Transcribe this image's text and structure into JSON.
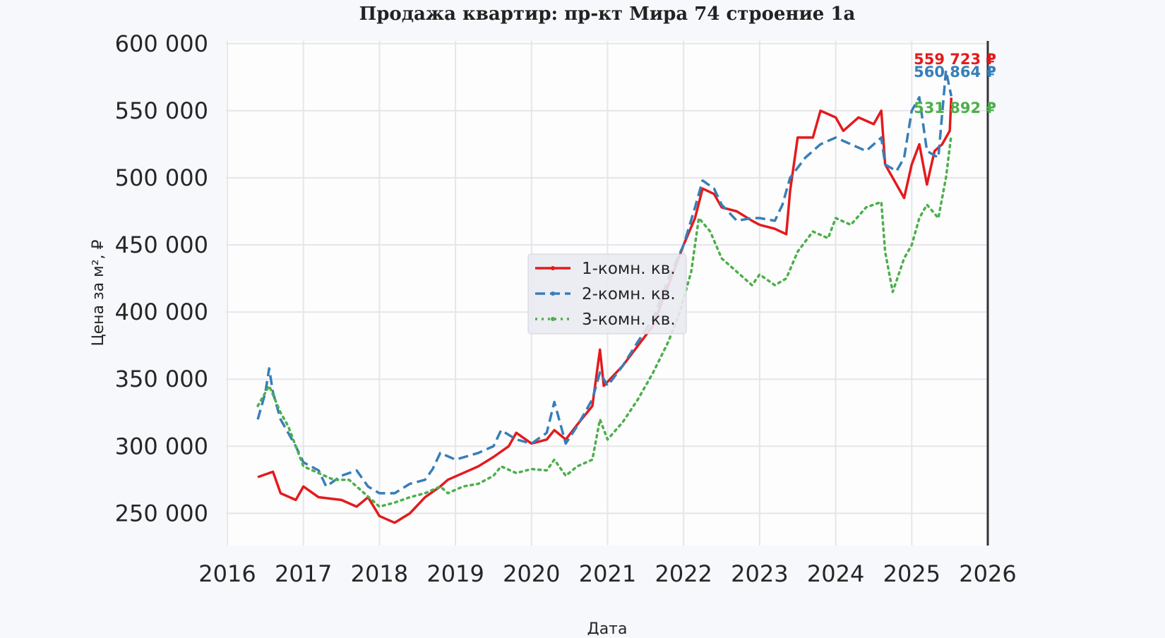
{
  "chart_data": {
    "type": "line",
    "title": "Продажа квартир: пр-кт Мира 74 строение 1а",
    "xlabel": "Дата",
    "ylabel": "Цена за м², ₽",
    "xlim": [
      2016,
      2026
    ],
    "ylim": [
      226000,
      602000
    ],
    "x_ticks": [
      "2016",
      "2017",
      "2018",
      "2019",
      "2020",
      "2021",
      "2022",
      "2023",
      "2024",
      "2025",
      "2026"
    ],
    "y_ticks": [
      250000,
      300000,
      350000,
      400000,
      450000,
      500000,
      550000,
      600000
    ],
    "y_tick_labels": [
      "250 000",
      "300 000",
      "350 000",
      "400 000",
      "450 000",
      "500 000",
      "550 000",
      "600 000"
    ],
    "grid": true,
    "legend_placement": "center",
    "vertical_line_x": 2026,
    "series": [
      {
        "name": "1-комн. кв.",
        "color": "#e41a1c",
        "style": "solid",
        "x": [
          2016.4,
          2016.6,
          2016.7,
          2016.9,
          2017.0,
          2017.2,
          2017.5,
          2017.7,
          2017.85,
          2018.0,
          2018.2,
          2018.4,
          2018.6,
          2018.8,
          2018.9,
          2019.1,
          2019.3,
          2019.5,
          2019.7,
          2019.8,
          2020.0,
          2020.2,
          2020.3,
          2020.45,
          2020.6,
          2020.8,
          2020.9,
          2020.95,
          2021.2,
          2021.4,
          2021.6,
          2021.8,
          2022.0,
          2022.15,
          2022.25,
          2022.4,
          2022.5,
          2022.7,
          2022.9,
          2023.0,
          2023.2,
          2023.35,
          2023.4,
          2023.5,
          2023.7,
          2023.8,
          2024.0,
          2024.1,
          2024.3,
          2024.5,
          2024.6,
          2024.65,
          2024.8,
          2024.9,
          2025.0,
          2025.1,
          2025.2,
          2025.3,
          2025.4,
          2025.5,
          2025.52
        ],
        "y": [
          277000,
          281000,
          265000,
          260000,
          270000,
          262000,
          260000,
          255000,
          262000,
          248000,
          243000,
          250000,
          262000,
          270000,
          275000,
          280000,
          285000,
          292000,
          300000,
          310000,
          302000,
          305000,
          312000,
          305000,
          316000,
          330000,
          372000,
          345000,
          360000,
          375000,
          390000,
          420000,
          450000,
          470000,
          492000,
          488000,
          478000,
          475000,
          468000,
          465000,
          462000,
          458000,
          490000,
          530000,
          530000,
          550000,
          545000,
          535000,
          545000,
          540000,
          550000,
          510000,
          495000,
          485000,
          510000,
          525000,
          495000,
          520000,
          525000,
          535000,
          559723
        ],
        "last_label": "559 723 ₽"
      },
      {
        "name": "2-комн. кв.",
        "color": "#377eb8",
        "style": "dashed",
        "x": [
          2016.4,
          2016.5,
          2016.55,
          2016.6,
          2016.7,
          2016.9,
          2017.0,
          2017.2,
          2017.3,
          2017.5,
          2017.7,
          2017.85,
          2018.0,
          2018.2,
          2018.4,
          2018.6,
          2018.7,
          2018.8,
          2019.0,
          2019.3,
          2019.5,
          2019.6,
          2019.8,
          2020.0,
          2020.2,
          2020.3,
          2020.45,
          2020.6,
          2020.8,
          2020.9,
          2021.0,
          2021.2,
          2021.4,
          2021.6,
          2021.8,
          2022.0,
          2022.15,
          2022.25,
          2022.4,
          2022.5,
          2022.7,
          2022.9,
          2023.0,
          2023.2,
          2023.3,
          2023.4,
          2023.6,
          2023.8,
          2024.0,
          2024.2,
          2024.4,
          2024.6,
          2024.65,
          2024.8,
          2024.9,
          2025.0,
          2025.1,
          2025.2,
          2025.35,
          2025.45,
          2025.52
        ],
        "y": [
          320000,
          340000,
          358000,
          340000,
          320000,
          300000,
          288000,
          282000,
          270000,
          278000,
          282000,
          270000,
          265000,
          265000,
          272000,
          275000,
          283000,
          295000,
          290000,
          295000,
          300000,
          312000,
          305000,
          302000,
          310000,
          333000,
          302000,
          315000,
          335000,
          355000,
          345000,
          360000,
          378000,
          395000,
          425000,
          450000,
          478000,
          498000,
          492000,
          480000,
          468000,
          470000,
          470000,
          468000,
          480000,
          500000,
          515000,
          525000,
          530000,
          525000,
          520000,
          530000,
          510000,
          505000,
          515000,
          550000,
          560000,
          520000,
          515000,
          580000,
          560864
        ],
        "last_label": "560 864 ₽"
      },
      {
        "name": "3-комн. кв.",
        "color": "#4daf4a",
        "style": "dotted",
        "x": [
          2016.4,
          2016.55,
          2016.7,
          2016.8,
          2016.9,
          2017.0,
          2017.2,
          2017.4,
          2017.6,
          2017.8,
          2018.0,
          2018.2,
          2018.4,
          2018.6,
          2018.8,
          2018.9,
          2019.1,
          2019.3,
          2019.5,
          2019.6,
          2019.8,
          2020.0,
          2020.2,
          2020.3,
          2020.45,
          2020.6,
          2020.8,
          2020.9,
          2021.0,
          2021.2,
          2021.4,
          2021.6,
          2021.8,
          2021.95,
          2022.1,
          2022.2,
          2022.35,
          2022.5,
          2022.7,
          2022.9,
          2023.0,
          2023.2,
          2023.35,
          2023.5,
          2023.7,
          2023.9,
          2024.0,
          2024.2,
          2024.4,
          2024.6,
          2024.65,
          2024.75,
          2024.9,
          2025.0,
          2025.1,
          2025.2,
          2025.35,
          2025.45,
          2025.52
        ],
        "y": [
          330000,
          345000,
          325000,
          315000,
          300000,
          285000,
          280000,
          275000,
          275000,
          265000,
          255000,
          258000,
          262000,
          265000,
          270000,
          265000,
          270000,
          272000,
          278000,
          285000,
          280000,
          283000,
          282000,
          290000,
          278000,
          285000,
          290000,
          320000,
          305000,
          318000,
          335000,
          355000,
          378000,
          400000,
          430000,
          470000,
          460000,
          440000,
          430000,
          420000,
          428000,
          420000,
          425000,
          445000,
          460000,
          455000,
          470000,
          465000,
          478000,
          482000,
          445000,
          415000,
          440000,
          450000,
          470000,
          480000,
          470000,
          500000,
          531892
        ],
        "last_label": "531 892 ₽"
      }
    ]
  }
}
